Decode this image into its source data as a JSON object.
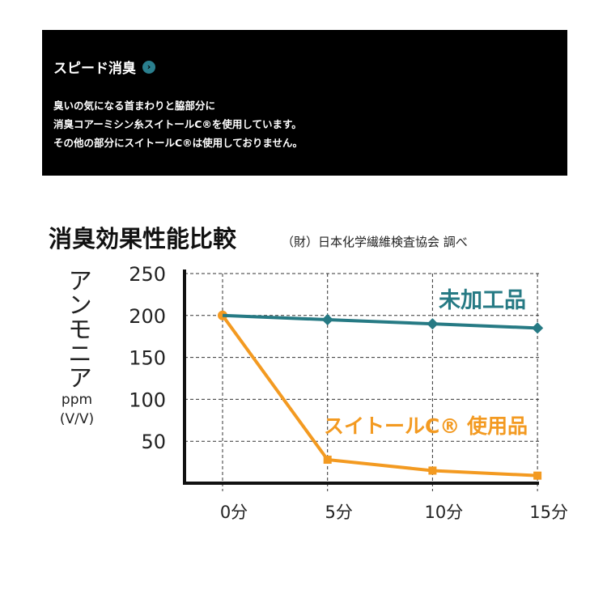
{
  "panel": {
    "title": "スピード消臭",
    "lines": [
      "臭いの気になる首まわりと脇部分に",
      "消臭コアーミシン糸スイトールC®を使用しています。",
      "その他の部分にスイトールC®は使用しておりません。"
    ]
  },
  "chart_data": {
    "type": "line",
    "title": "消臭効果性能比較",
    "subtitle": "（財）日本化学繊維検査協会 調べ",
    "ylabel": "アンモニア",
    "yunit_1": "ppm",
    "yunit_2": "(V/V)",
    "categories": [
      "0分",
      "5分",
      "10分",
      "15分"
    ],
    "yticks": [
      "250",
      "200",
      "150",
      "100",
      "50"
    ],
    "ylim": [
      0,
      250
    ],
    "grid": true,
    "series": [
      {
        "name": "未加工品",
        "values": [
          200,
          195,
          190,
          185
        ],
        "color": "#267a84",
        "marker": "diamond"
      },
      {
        "name": "スイトールC® 使用品",
        "values": [
          200,
          28,
          15,
          9
        ],
        "color": "#f39a21",
        "marker": "square"
      }
    ]
  }
}
